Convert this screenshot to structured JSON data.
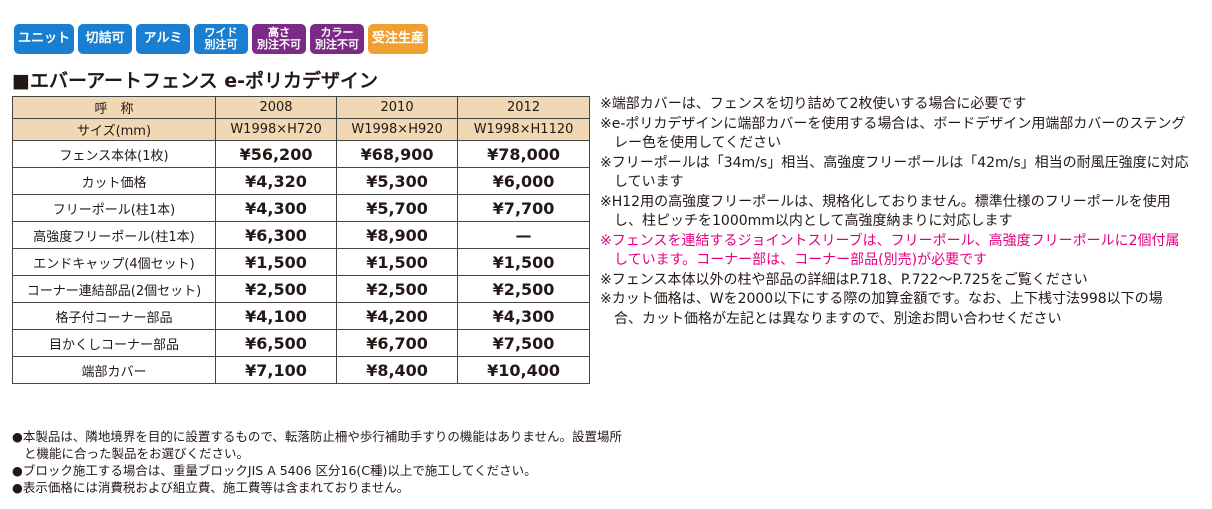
{
  "badges": [
    {
      "text": "ユニット",
      "color": "#1a7fd0"
    },
    {
      "text": "切詰可",
      "color": "#1a7fd0"
    },
    {
      "text": "アルミ",
      "color": "#1a7fd0"
    },
    {
      "text": "ワイド\n別注可",
      "color": "#1a7fd0"
    },
    {
      "text": "高さ\n別注不可",
      "color": "#7b2a86"
    },
    {
      "text": "カラー\n別注不可",
      "color": "#7b2a86"
    },
    {
      "text": "受注生産",
      "color": "#f0a030"
    }
  ],
  "title": "■エバーアートフェンス e-ポリカデザイン",
  "table": {
    "header": [
      [
        "呼　称",
        "2008",
        "2010",
        "2012"
      ],
      [
        "サイズ(mm)",
        "W1998×H720",
        "W1998×H920",
        "W1998×H1120"
      ]
    ],
    "rows": [
      [
        "フェンス本体(1枚)",
        "¥56,200",
        "¥68,900",
        "¥78,000"
      ],
      [
        "カット価格",
        "¥4,320",
        "¥5,300",
        "¥6,000"
      ],
      [
        "フリーポール(柱1本)",
        "¥4,300",
        "¥5,700",
        "¥7,700"
      ],
      [
        "高強度フリーポール(柱1本)",
        "¥6,300",
        "¥8,900",
        "—"
      ],
      [
        "エンドキャップ(4個セット)",
        "¥1,500",
        "¥1,500",
        "¥1,500"
      ],
      [
        "コーナー連結部品(2個セット)",
        "¥2,500",
        "¥2,500",
        "¥2,500"
      ],
      [
        "格子付コーナー部品",
        "¥4,100",
        "¥4,200",
        "¥4,300"
      ],
      [
        "目かくしコーナー部品",
        "¥6,500",
        "¥6,700",
        "¥7,500"
      ],
      [
        "端部カバー",
        "¥7,100",
        "¥8,400",
        "¥10,400"
      ]
    ]
  },
  "notes": [
    {
      "text": "※端部カバーは、フェンスを切り詰めて2枚使いする場合に必要です",
      "color": "#231815"
    },
    {
      "text": "※e-ポリカデザインに端部カバーを使用する場合は、ボードデザイン用端部カバーのステングレー色を使用してください",
      "color": "#231815"
    },
    {
      "text": "※フリーポールは「34m/s」相当、高強度フリーポールは「42m/s」相当の耐風圧強度に対応しています",
      "color": "#231815"
    },
    {
      "text": "※H12用の高強度フリーポールは、規格化しておりません。標準仕様のフリーポールを使用し、柱ピッチを1000mm以内として高強度納まりに対応します",
      "color": "#231815"
    },
    {
      "text": "※フェンスを連結するジョイントスリーブは、フリーポール、高強度フリーポールに2個付属しています。コーナー部は、コーナー部品(別売)が必要です",
      "color": "#e4007f"
    },
    {
      "text": "※フェンス本体以外の柱や部品の詳細はP.718、P.722〜P.725をご覧ください",
      "color": "#231815"
    },
    {
      "text": "※カット価格は、Wを2000以下にする際の加算金額です。なお、上下桟寸法998以下の場合、カット価格が左記とは異なりますので、別途お問い合わせください",
      "color": "#231815"
    }
  ],
  "footer": [
    "●本製品は、隣地境界を目的に設置するもので、転落防止柵や歩行補助手すりの機能はありません。設置場所と機能に合った製品をお選びください。",
    "●ブロック施工する場合は、重量ブロックJIS A 5406 区分16(C種)以上で施工してください。",
    "●表示価格には消費税および組立費、施工費等は含まれておりません。"
  ]
}
